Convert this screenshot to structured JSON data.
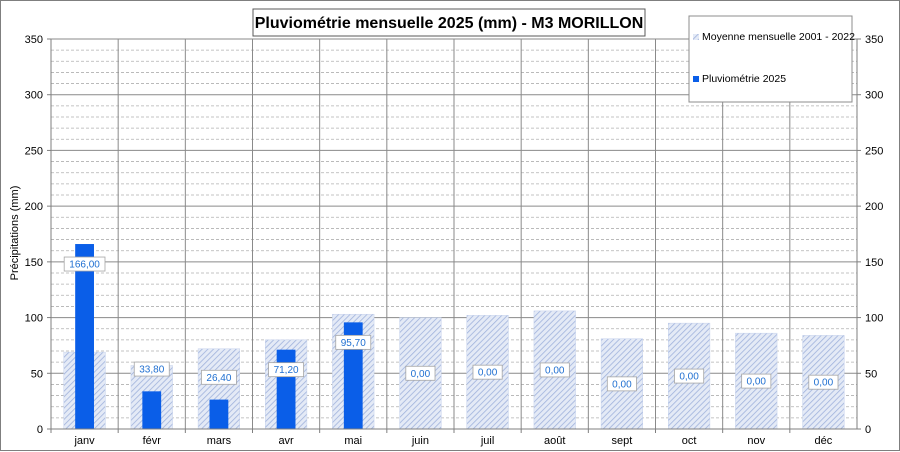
{
  "chart_data": {
    "type": "bar",
    "title": "Pluviométrie mensuelle 2025 (mm) - M3 MORILLON",
    "ylabel": "Précipitations (mm)",
    "ylim": [
      0,
      350
    ],
    "yticks": [
      0,
      50,
      100,
      150,
      200,
      250,
      300,
      350
    ],
    "secondary_axis": true,
    "grid": true,
    "legend_position": "top-right",
    "categories": [
      "janv",
      "févr",
      "mars",
      "avr",
      "mai",
      "juin",
      "juil",
      "août",
      "sept",
      "oct",
      "nov",
      "déc"
    ],
    "series": [
      {
        "name": "Moyenne mensuelle 2001 - 2022",
        "color": "#a9bbe0",
        "pattern": "hatched",
        "values": [
          69,
          57,
          72,
          80,
          103,
          100,
          102,
          106,
          81,
          95,
          86,
          84
        ]
      },
      {
        "name": "Pluviométrie 2025",
        "color": "#0a5ee8",
        "values": [
          166.0,
          33.8,
          26.4,
          71.2,
          95.7,
          0,
          0,
          0,
          0,
          0,
          0,
          0
        ],
        "labels": [
          "166,00",
          "33,80",
          "26,40",
          "71,20",
          "95,70",
          "0,00",
          "0,00",
          "0,00",
          "0,00",
          "0,00",
          "0,00",
          "0,00"
        ]
      }
    ]
  }
}
